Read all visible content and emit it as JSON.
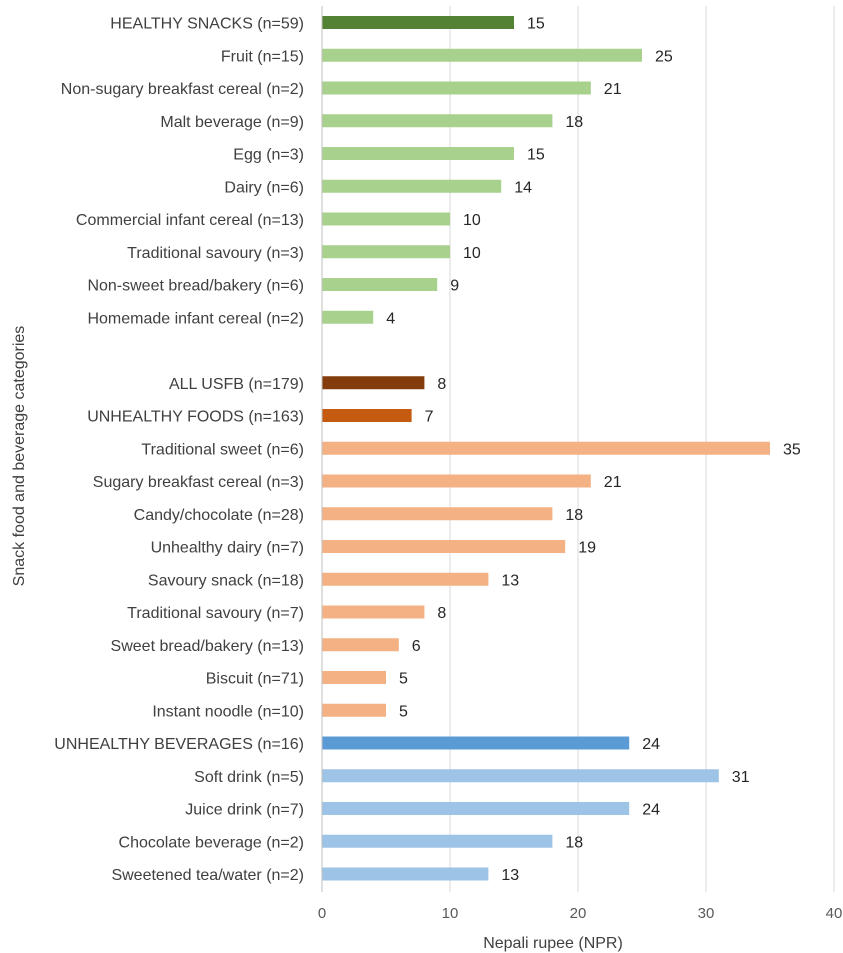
{
  "chart_data": {
    "type": "bar",
    "orientation": "horizontal",
    "xlabel": "Nepali rupee (NPR)",
    "ylabel": "Snack food and beverage categories",
    "xlim": [
      0,
      40
    ],
    "xticks": [
      "0",
      "10",
      "20",
      "30",
      "40"
    ],
    "grid": "vertical",
    "colors": {
      "healthy_summary": "#548235",
      "healthy": "#a9d18e",
      "all_usfb": "#843c0c",
      "unhealthy_foods_summary": "#c55a11",
      "unhealthy_food": "#f4b183",
      "unhealthy_bev_summary": "#5b9bd5",
      "unhealthy_bev": "#9dc3e6"
    },
    "bars": [
      {
        "label": "HEALTHY SNACKS (n=59)",
        "value": 15,
        "group": "healthy_summary",
        "slot": 0
      },
      {
        "label": "Fruit (n=15)",
        "value": 25,
        "group": "healthy",
        "slot": 1
      },
      {
        "label": "Non-sugary breakfast cereal (n=2)",
        "value": 21,
        "group": "healthy",
        "slot": 2
      },
      {
        "label": "Malt beverage (n=9)",
        "value": 18,
        "group": "healthy",
        "slot": 3
      },
      {
        "label": "Egg (n=3)",
        "value": 15,
        "group": "healthy",
        "slot": 4
      },
      {
        "label": "Dairy (n=6)",
        "value": 14,
        "group": "healthy",
        "slot": 5
      },
      {
        "label": "Commercial infant cereal (n=13)",
        "value": 10,
        "group": "healthy",
        "slot": 6
      },
      {
        "label": "Traditional savoury (n=3)",
        "value": 10,
        "group": "healthy",
        "slot": 7
      },
      {
        "label": "Non-sweet bread/bakery (n=6)",
        "value": 9,
        "group": "healthy",
        "slot": 8
      },
      {
        "label": "Homemade infant cereal (n=2)",
        "value": 4,
        "group": "healthy",
        "slot": 9
      },
      {
        "label": "ALL USFB (n=179)",
        "value": 8,
        "group": "all_usfb",
        "slot": 11
      },
      {
        "label": "UNHEALTHY FOODS (n=163)",
        "value": 7,
        "group": "unhealthy_foods_summary",
        "slot": 12
      },
      {
        "label": "Traditional sweet (n=6)",
        "value": 35,
        "group": "unhealthy_food",
        "slot": 13
      },
      {
        "label": "Sugary breakfast cereal (n=3)",
        "value": 21,
        "group": "unhealthy_food",
        "slot": 14
      },
      {
        "label": "Candy/chocolate (n=28)",
        "value": 18,
        "group": "unhealthy_food",
        "slot": 15
      },
      {
        "label": "Unhealthy dairy (n=7)",
        "value": 19,
        "group": "unhealthy_food",
        "slot": 16
      },
      {
        "label": "Savoury snack (n=18)",
        "value": 13,
        "group": "unhealthy_food",
        "slot": 17
      },
      {
        "label": "Traditional savoury (n=7)",
        "value": 8,
        "group": "unhealthy_food",
        "slot": 18
      },
      {
        "label": "Sweet bread/bakery (n=13)",
        "value": 6,
        "group": "unhealthy_food",
        "slot": 19
      },
      {
        "label": "Biscuit (n=71)",
        "value": 5,
        "group": "unhealthy_food",
        "slot": 20
      },
      {
        "label": "Instant noodle (n=10)",
        "value": 5,
        "group": "unhealthy_food",
        "slot": 21
      },
      {
        "label": "UNHEALTHY BEVERAGES (n=16)",
        "value": 24,
        "group": "unhealthy_bev_summary",
        "slot": 22
      },
      {
        "label": "Soft drink (n=5)",
        "value": 31,
        "group": "unhealthy_bev",
        "slot": 23
      },
      {
        "label": "Juice drink (n=7)",
        "value": 24,
        "group": "unhealthy_bev",
        "slot": 24
      },
      {
        "label": "Chocolate beverage (n=2)",
        "value": 18,
        "group": "unhealthy_bev",
        "slot": 25
      },
      {
        "label": "Sweetened tea/water (n=2)",
        "value": 13,
        "group": "unhealthy_bev",
        "slot": 26
      }
    ]
  }
}
